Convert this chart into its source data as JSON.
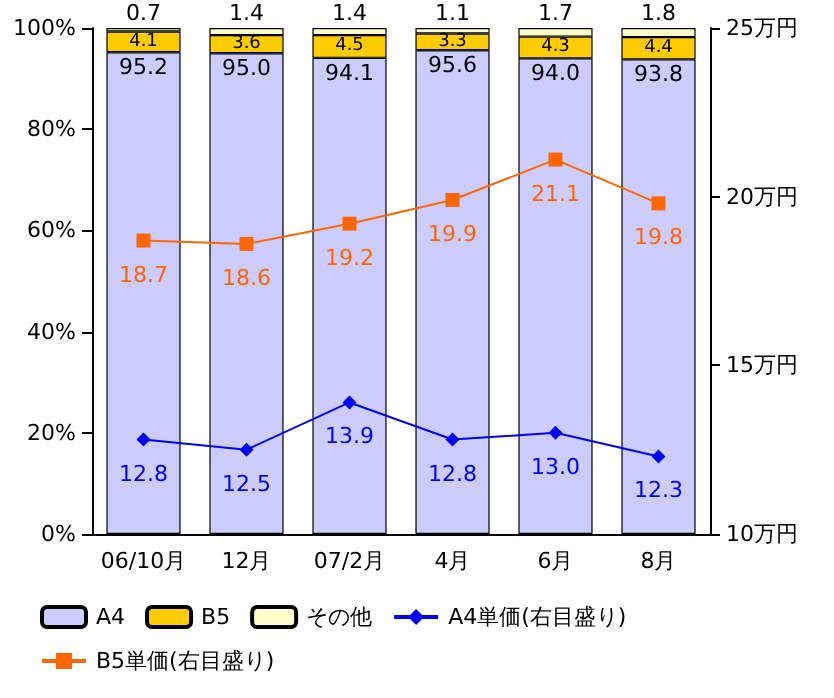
{
  "chart_data": {
    "type": "bar",
    "stacked": true,
    "categories": [
      "06/10月",
      "12月",
      "07/2月",
      "4月",
      "6月",
      "8月"
    ],
    "series": [
      {
        "name": "A4",
        "color": "#ccccff",
        "values": [
          95.2,
          95.0,
          94.1,
          95.6,
          94.0,
          93.8
        ],
        "value_labels": [
          "95.2",
          "95.0",
          "94.1",
          "95.6",
          "94.0",
          "93.8"
        ]
      },
      {
        "name": "B5",
        "color": "#ffcc00",
        "values": [
          4.1,
          3.6,
          4.5,
          3.3,
          4.3,
          4.4
        ],
        "value_labels": [
          "4.1",
          "3.6",
          "4.5",
          "3.3",
          "4.3",
          "4.4"
        ]
      },
      {
        "name": "その他",
        "color": "#ffffcc",
        "values": [
          0.7,
          1.4,
          1.4,
          1.1,
          1.7,
          1.8
        ],
        "value_labels": [
          "0.7",
          "1.4",
          "1.4",
          "1.1",
          "1.7",
          "1.8"
        ]
      },
      {
        "name": "A4単価(右目盛り)",
        "type": "line",
        "axis": "y2",
        "color": "#0000ff",
        "marker": "diamond",
        "values": [
          12.8,
          12.5,
          13.9,
          12.8,
          13.0,
          12.3
        ],
        "value_labels": [
          "12.8",
          "12.5",
          "13.9",
          "12.8",
          "13.0",
          "12.3"
        ]
      },
      {
        "name": "B5単価(右目盛り)",
        "type": "line",
        "axis": "y2",
        "color": "#ff6600",
        "marker": "square",
        "values": [
          18.7,
          18.6,
          19.2,
          19.9,
          21.1,
          19.8
        ],
        "value_labels": [
          "18.7",
          "18.6",
          "19.2",
          "19.9",
          "21.1",
          "19.8"
        ]
      }
    ],
    "ylim": [
      0,
      100
    ],
    "yticks": [
      {
        "value": 0,
        "label": "0%"
      },
      {
        "value": 20,
        "label": "20%"
      },
      {
        "value": 40,
        "label": "40%"
      },
      {
        "value": 60,
        "label": "60%"
      },
      {
        "value": 80,
        "label": "80%"
      },
      {
        "value": 100,
        "label": "100%"
      }
    ],
    "y2lim": [
      10,
      25
    ],
    "y2ticks": [
      {
        "value": 10,
        "label": "10万円"
      },
      {
        "value": 15,
        "label": "15万円"
      },
      {
        "value": 20,
        "label": "20万円"
      },
      {
        "value": 25,
        "label": "25万円"
      }
    ],
    "legend": "bottom",
    "grid": false
  }
}
